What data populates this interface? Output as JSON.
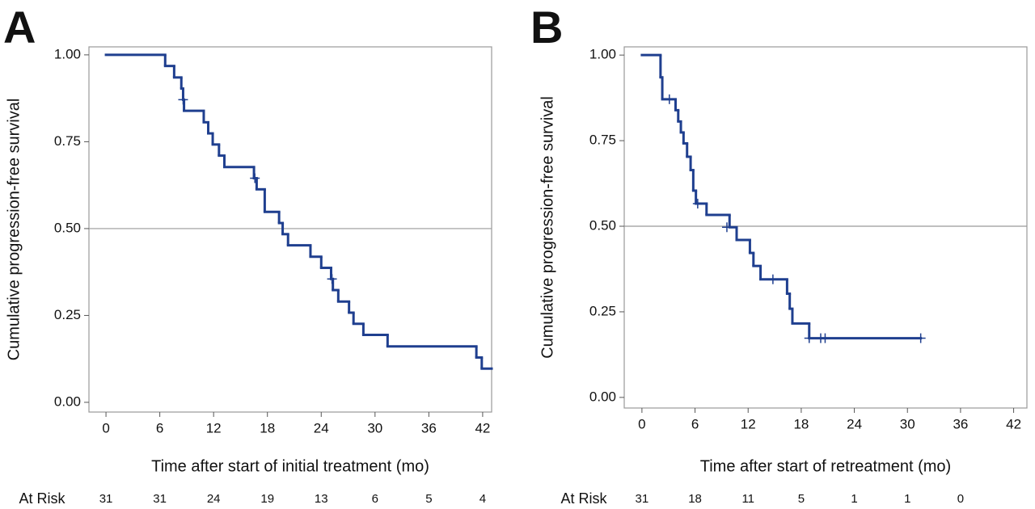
{
  "chart_data": [
    {
      "type": "step",
      "panel_label": "A",
      "xlabel": "Time after start of initial treatment (mo)",
      "ylabel": "Cumulative progression-free survival",
      "x": [
        0,
        6.6,
        7.6,
        8.4,
        8.6,
        8.7,
        10.9,
        11.4,
        11.9,
        12.6,
        13.2,
        16.5,
        16.8,
        17.7,
        19.3,
        19.7,
        20.3,
        22.8,
        24.0,
        25.1,
        25.3,
        25.9,
        27.1,
        27.6,
        28.7,
        31.4,
        41.3,
        41.9
      ],
      "values": [
        1.0,
        0.968,
        0.935,
        0.903,
        0.871,
        0.839,
        0.806,
        0.774,
        0.742,
        0.71,
        0.677,
        0.645,
        0.613,
        0.548,
        0.516,
        0.484,
        0.452,
        0.419,
        0.387,
        0.355,
        0.323,
        0.29,
        0.258,
        0.226,
        0.194,
        0.161,
        0.129,
        0.097
      ],
      "x_end": 43,
      "censored": {
        "x": [
          8.6,
          16.6,
          25.2
        ],
        "values": [
          0.871,
          0.645,
          0.355
        ]
      },
      "color": "#1f3f8f",
      "reference_line": 0.5,
      "xlim": [
        -1.9,
        43
      ],
      "ylim": [
        -0.028,
        1.023
      ],
      "xticks": [
        0,
        6,
        12,
        18,
        24,
        30,
        36,
        42
      ],
      "yticks": [
        {
          "value": 0,
          "label": "0.00"
        },
        {
          "value": 0.25,
          "label": "0.25"
        },
        {
          "value": 0.5,
          "label": "0.50"
        },
        {
          "value": 0.75,
          "label": "0.75"
        },
        {
          "value": 1,
          "label": "1.00"
        }
      ],
      "at_risk_label": "At Risk",
      "at_risk": [
        31,
        31,
        24,
        19,
        13,
        6,
        5,
        4
      ]
    },
    {
      "type": "step",
      "panel_label": "B",
      "xlabel": "Time after start of retreatment (mo)",
      "ylabel": "Cumulative progression-free survival",
      "x": [
        0,
        2.1,
        2.3,
        3.8,
        4.1,
        4.4,
        4.7,
        5.1,
        5.5,
        5.8,
        6.1,
        7.3,
        9.9,
        10.7,
        12.2,
        12.6,
        13.4,
        16.4,
        16.7,
        17.0,
        18.9
      ],
      "values": [
        1.0,
        0.935,
        0.871,
        0.839,
        0.806,
        0.774,
        0.742,
        0.703,
        0.664,
        0.604,
        0.566,
        0.533,
        0.497,
        0.46,
        0.422,
        0.384,
        0.345,
        0.303,
        0.259,
        0.216,
        0.173
      ],
      "x_end": 31.5,
      "censored": {
        "x": [
          3.1,
          6.3,
          9.6,
          14.8,
          18.9,
          20.2,
          20.7,
          31.5
        ],
        "values": [
          0.871,
          0.566,
          0.497,
          0.345,
          0.173,
          0.173,
          0.173,
          0.173
        ]
      },
      "color": "#1f3f8f",
      "reference_line": 0.5,
      "xlim": [
        -2.0,
        43.5
      ],
      "ylim": [
        -0.031,
        1.024
      ],
      "xticks": [
        0,
        6,
        12,
        18,
        24,
        30,
        36,
        42
      ],
      "yticks": [
        {
          "value": 0,
          "label": "0.00"
        },
        {
          "value": 0.25,
          "label": "0.25"
        },
        {
          "value": 0.5,
          "label": "0.50"
        },
        {
          "value": 0.75,
          "label": "0.75"
        },
        {
          "value": 1,
          "label": "1.00"
        }
      ],
      "at_risk_label": "At Risk",
      "at_risk": [
        31,
        18,
        11,
        5,
        1,
        1,
        0
      ]
    }
  ]
}
